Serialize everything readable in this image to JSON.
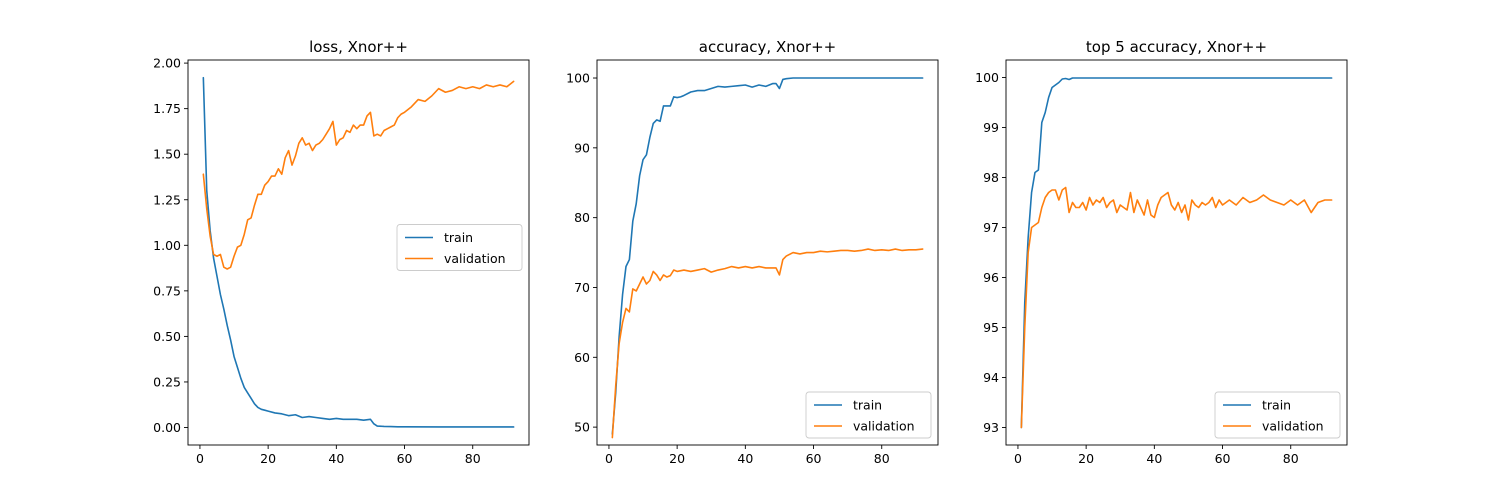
{
  "colors": {
    "train": "#1f77b4",
    "validation": "#ff7f0e"
  },
  "chart_data": [
    {
      "type": "line",
      "title": "loss, Xnor++",
      "xlabel": "",
      "ylabel": "",
      "xlim": [
        -3.5,
        96.5
      ],
      "ylim": [
        -0.096,
        2.017
      ],
      "xticks": [
        0,
        20,
        40,
        60,
        80
      ],
      "xtick_labels": [
        "0",
        "20",
        "40",
        "60",
        "80"
      ],
      "yticks": [
        0,
        0.25,
        0.5,
        0.75,
        1.0,
        1.25,
        1.5,
        1.75,
        2.0
      ],
      "ytick_labels": [
        "0.00",
        "0.25",
        "0.50",
        "0.75",
        "1.00",
        "1.25",
        "1.50",
        "1.75",
        "2.00"
      ],
      "legend": "center-right",
      "series": [
        {
          "name": "train",
          "x": [
            1,
            2,
            3,
            4,
            5,
            6,
            7,
            8,
            9,
            10,
            11,
            12,
            13,
            14,
            15,
            16,
            17,
            18,
            19,
            20,
            22,
            24,
            26,
            28,
            30,
            32,
            34,
            36,
            38,
            40,
            42,
            44,
            46,
            48,
            50,
            51,
            52,
            54,
            56,
            58,
            60,
            70,
            80,
            92
          ],
          "y": [
            1.92,
            1.3,
            1.08,
            0.93,
            0.83,
            0.73,
            0.65,
            0.56,
            0.48,
            0.39,
            0.33,
            0.27,
            0.22,
            0.19,
            0.16,
            0.13,
            0.11,
            0.1,
            0.095,
            0.09,
            0.08,
            0.075,
            0.065,
            0.07,
            0.055,
            0.06,
            0.055,
            0.05,
            0.045,
            0.05,
            0.045,
            0.045,
            0.045,
            0.04,
            0.045,
            0.02,
            0.008,
            0.006,
            0.005,
            0.004,
            0.004,
            0.003,
            0.003,
            0.003
          ]
        },
        {
          "name": "validation",
          "x": [
            1,
            2,
            3,
            4,
            5,
            6,
            7,
            8,
            9,
            10,
            11,
            12,
            13,
            14,
            15,
            16,
            17,
            18,
            19,
            20,
            21,
            22,
            23,
            24,
            25,
            26,
            27,
            28,
            29,
            30,
            31,
            32,
            33,
            34,
            35,
            36,
            37,
            38,
            39,
            40,
            41,
            42,
            43,
            44,
            45,
            46,
            47,
            48,
            49,
            50,
            51,
            52,
            53,
            54,
            55,
            56,
            57,
            58,
            59,
            60,
            62,
            64,
            66,
            68,
            70,
            72,
            74,
            76,
            78,
            80,
            82,
            84,
            86,
            88,
            90,
            92
          ],
          "y": [
            1.39,
            1.2,
            1.05,
            0.95,
            0.94,
            0.95,
            0.88,
            0.87,
            0.88,
            0.94,
            0.99,
            1.0,
            1.06,
            1.14,
            1.15,
            1.22,
            1.28,
            1.28,
            1.33,
            1.35,
            1.38,
            1.38,
            1.42,
            1.39,
            1.48,
            1.52,
            1.44,
            1.49,
            1.56,
            1.59,
            1.55,
            1.56,
            1.52,
            1.55,
            1.56,
            1.58,
            1.61,
            1.64,
            1.68,
            1.55,
            1.58,
            1.59,
            1.63,
            1.62,
            1.66,
            1.64,
            1.66,
            1.66,
            1.71,
            1.73,
            1.6,
            1.61,
            1.6,
            1.63,
            1.64,
            1.65,
            1.66,
            1.7,
            1.72,
            1.73,
            1.76,
            1.8,
            1.79,
            1.82,
            1.86,
            1.84,
            1.85,
            1.87,
            1.86,
            1.87,
            1.86,
            1.88,
            1.87,
            1.88,
            1.87,
            1.9
          ]
        }
      ]
    },
    {
      "type": "line",
      "title": "accuracy, Xnor++",
      "xlabel": "",
      "ylabel": "",
      "xlim": [
        -3.5,
        96.5
      ],
      "ylim": [
        47.44,
        102.58
      ],
      "xticks": [
        0,
        20,
        40,
        60,
        80
      ],
      "xtick_labels": [
        "0",
        "20",
        "40",
        "60",
        "80"
      ],
      "yticks": [
        50,
        60,
        70,
        80,
        90,
        100
      ],
      "ytick_labels": [
        "50",
        "60",
        "70",
        "80",
        "90",
        "100"
      ],
      "legend": "lower-right",
      "series": [
        {
          "name": "train",
          "x": [
            1,
            2,
            3,
            4,
            5,
            6,
            7,
            8,
            9,
            10,
            11,
            12,
            13,
            14,
            15,
            16,
            17,
            18,
            19,
            20,
            21,
            22,
            24,
            26,
            28,
            30,
            32,
            34,
            36,
            38,
            40,
            42,
            44,
            46,
            48,
            49,
            50,
            51,
            52,
            54,
            56,
            60,
            70,
            80,
            92
          ],
          "y": [
            49.0,
            55.0,
            63.0,
            69.0,
            73.0,
            74.0,
            79.5,
            82.0,
            86.0,
            88.3,
            89.0,
            91.5,
            93.5,
            94.0,
            93.8,
            96.0,
            96.0,
            96.0,
            97.3,
            97.2,
            97.3,
            97.5,
            98.0,
            98.2,
            98.2,
            98.5,
            98.8,
            98.7,
            98.8,
            98.9,
            99.0,
            98.7,
            99.0,
            98.8,
            99.2,
            99.2,
            98.5,
            99.8,
            99.9,
            100.0,
            100.0,
            100.0,
            100.0,
            100.0,
            100.0
          ]
        },
        {
          "name": "validation",
          "x": [
            1,
            2,
            3,
            4,
            5,
            6,
            7,
            8,
            9,
            10,
            11,
            12,
            13,
            14,
            15,
            16,
            17,
            18,
            19,
            20,
            22,
            24,
            26,
            28,
            30,
            32,
            34,
            36,
            38,
            40,
            42,
            44,
            46,
            48,
            49,
            50,
            51,
            52,
            54,
            56,
            58,
            60,
            62,
            64,
            66,
            68,
            70,
            72,
            74,
            76,
            78,
            80,
            82,
            84,
            86,
            88,
            90,
            92
          ],
          "y": [
            48.5,
            56.0,
            62.0,
            65.0,
            67.0,
            66.5,
            69.8,
            69.5,
            70.5,
            71.5,
            70.5,
            71.0,
            72.3,
            71.8,
            71.0,
            71.8,
            71.5,
            71.7,
            72.5,
            72.3,
            72.5,
            72.3,
            72.5,
            72.7,
            72.2,
            72.5,
            72.7,
            73.0,
            72.8,
            73.0,
            72.8,
            73.0,
            72.8,
            72.8,
            72.8,
            71.8,
            74.0,
            74.5,
            75.0,
            74.8,
            75.0,
            75.0,
            75.2,
            75.1,
            75.2,
            75.3,
            75.3,
            75.2,
            75.3,
            75.5,
            75.3,
            75.4,
            75.3,
            75.5,
            75.3,
            75.4,
            75.4,
            75.5
          ]
        }
      ]
    },
    {
      "type": "line",
      "title": "top 5 accuracy, Xnor++",
      "xlabel": "",
      "ylabel": "",
      "xlim": [
        -3.5,
        96.5
      ],
      "ylim": [
        92.65,
        100.35
      ],
      "xticks": [
        0,
        20,
        40,
        60,
        80
      ],
      "xtick_labels": [
        "0",
        "20",
        "40",
        "60",
        "80"
      ],
      "yticks": [
        93,
        94,
        95,
        96,
        97,
        98,
        99,
        100
      ],
      "ytick_labels": [
        "93",
        "94",
        "95",
        "96",
        "97",
        "98",
        "99",
        "100"
      ],
      "legend": "lower-right",
      "series": [
        {
          "name": "train",
          "x": [
            1,
            2,
            3,
            4,
            5,
            6,
            7,
            8,
            9,
            10,
            11,
            12,
            13,
            14,
            15,
            16,
            18,
            20,
            30,
            40,
            50,
            60,
            70,
            80,
            92
          ],
          "y": [
            93.0,
            95.5,
            96.8,
            97.7,
            98.1,
            98.15,
            99.1,
            99.3,
            99.6,
            99.8,
            99.85,
            99.9,
            99.97,
            99.98,
            99.96,
            99.99,
            99.99,
            99.99,
            99.99,
            99.99,
            99.99,
            99.99,
            99.99,
            99.99,
            99.99
          ]
        },
        {
          "name": "validation",
          "x": [
            1,
            2,
            3,
            4,
            5,
            6,
            7,
            8,
            9,
            10,
            11,
            12,
            13,
            14,
            15,
            16,
            17,
            18,
            19,
            20,
            21,
            22,
            23,
            24,
            25,
            26,
            27,
            28,
            29,
            30,
            31,
            32,
            33,
            34,
            35,
            36,
            37,
            38,
            39,
            40,
            41,
            42,
            43,
            44,
            45,
            46,
            47,
            48,
            49,
            50,
            51,
            52,
            53,
            54,
            55,
            56,
            57,
            58,
            59,
            60,
            62,
            64,
            66,
            68,
            70,
            72,
            74,
            76,
            78,
            80,
            82,
            84,
            86,
            88,
            90,
            92
          ],
          "y": [
            93.0,
            95.0,
            96.5,
            97.0,
            97.05,
            97.1,
            97.4,
            97.6,
            97.7,
            97.75,
            97.75,
            97.55,
            97.75,
            97.8,
            97.3,
            97.5,
            97.4,
            97.4,
            97.5,
            97.35,
            97.6,
            97.45,
            97.55,
            97.5,
            97.6,
            97.4,
            97.5,
            97.55,
            97.3,
            97.45,
            97.4,
            97.35,
            97.7,
            97.3,
            97.55,
            97.4,
            97.25,
            97.55,
            97.25,
            97.2,
            97.45,
            97.6,
            97.65,
            97.7,
            97.45,
            97.35,
            97.5,
            97.3,
            97.45,
            97.15,
            97.55,
            97.45,
            97.4,
            97.5,
            97.45,
            97.5,
            97.6,
            97.4,
            97.55,
            97.45,
            97.55,
            97.45,
            97.6,
            97.5,
            97.55,
            97.65,
            97.55,
            97.5,
            97.45,
            97.55,
            97.45,
            97.55,
            97.3,
            97.5,
            97.55,
            97.55
          ]
        }
      ]
    }
  ]
}
